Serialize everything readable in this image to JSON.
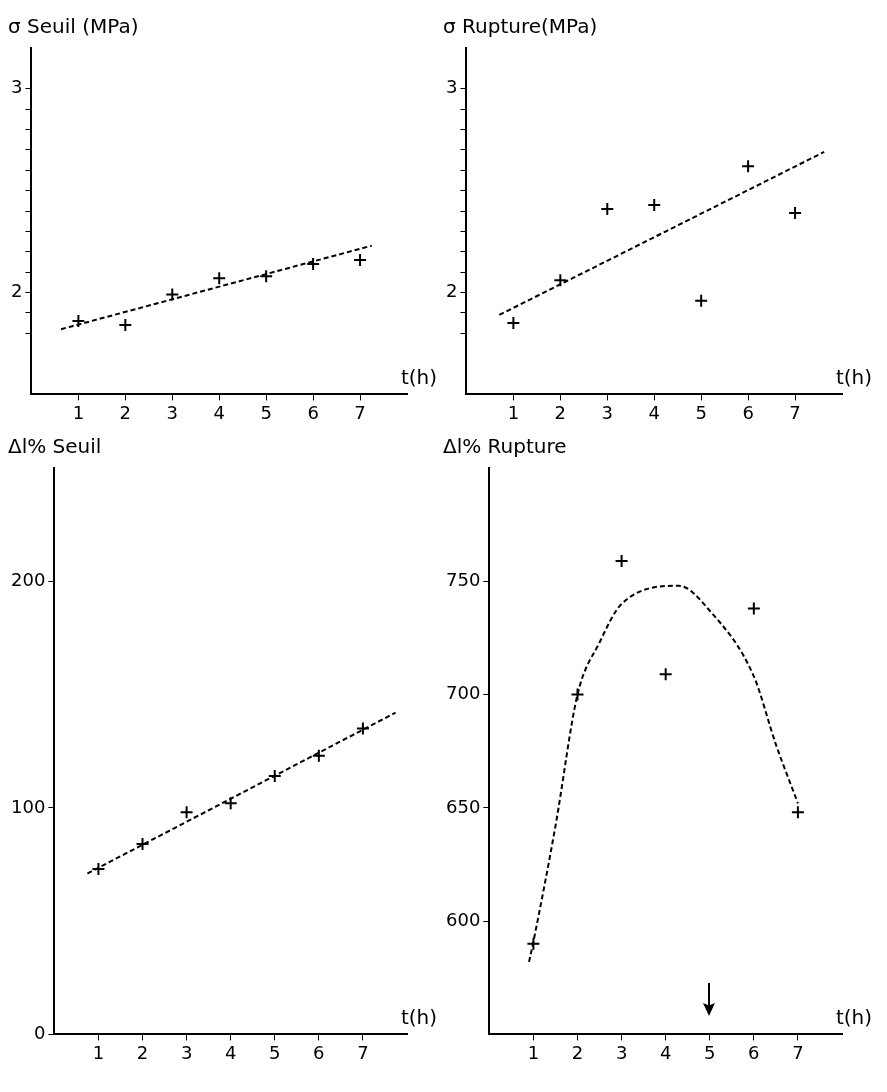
{
  "chart_data": [
    {
      "type": "scatter",
      "title": "σ Seuil (MPa)",
      "xlabel": "t(h)",
      "xlim": [
        0,
        8
      ],
      "xticks": [
        1,
        2,
        3,
        4,
        5,
        6,
        7
      ],
      "ylim": [
        1.5,
        3.2
      ],
      "yticks": [
        {
          "value": 1.8,
          "label": null
        },
        {
          "value": 1.9,
          "label": null
        },
        2,
        {
          "value": 2.1,
          "label": null
        },
        {
          "value": 2.2,
          "label": null
        },
        {
          "value": 2.3,
          "label": null
        },
        {
          "value": 2.4,
          "label": null
        },
        {
          "value": 2.5,
          "label": null
        },
        {
          "value": 2.6,
          "label": null
        },
        {
          "value": 2.7,
          "label": null
        },
        {
          "value": 2.8,
          "label": null
        },
        {
          "value": 2.9,
          "label": null
        },
        3
      ],
      "series": [
        {
          "type": "scatter",
          "color": "#000000",
          "marker": "cross",
          "x": [
            1,
            2,
            3,
            4,
            5,
            6,
            7
          ],
          "values": [
            1.86,
            1.84,
            1.99,
            2.07,
            2.08,
            2.14,
            2.16
          ]
        },
        {
          "type": "line",
          "color": "#000000",
          "marker": "none",
          "line_style": "dashed",
          "x": [
            0.63,
            7.25
          ],
          "values": [
            1.82,
            2.23
          ]
        }
      ]
    },
    {
      "type": "scatter",
      "title": "σ Rupture(MPa)",
      "xlabel": "t(h)",
      "xlim": [
        0,
        8
      ],
      "xticks": [
        1,
        2,
        3,
        4,
        5,
        6,
        7
      ],
      "ylim": [
        1.5,
        3.2
      ],
      "yticks": [
        {
          "value": 1.8,
          "label": null
        },
        {
          "value": 1.9,
          "label": null
        },
        2,
        {
          "value": 2.1,
          "label": null
        },
        {
          "value": 2.2,
          "label": null
        },
        {
          "value": 2.3,
          "label": null
        },
        {
          "value": 2.4,
          "label": null
        },
        {
          "value": 2.5,
          "label": null
        },
        {
          "value": 2.6,
          "label": null
        },
        {
          "value": 2.7,
          "label": null
        },
        {
          "value": 2.8,
          "label": null
        },
        {
          "value": 2.9,
          "label": null
        },
        3
      ],
      "series": [
        {
          "type": "scatter",
          "color": "#000000",
          "marker": "cross",
          "x": [
            1,
            2,
            3,
            4,
            5,
            6,
            7
          ],
          "values": [
            1.85,
            2.06,
            2.41,
            2.43,
            1.96,
            2.62,
            2.39
          ]
        },
        {
          "type": "line",
          "color": "#000000",
          "marker": "none",
          "line_style": "dashed",
          "x": [
            0.7,
            7.62
          ],
          "values": [
            1.89,
            2.69
          ]
        }
      ]
    },
    {
      "type": "scatter",
      "title": "Δl% Seuil",
      "xlabel": "t(h)",
      "xlim": [
        0,
        8
      ],
      "xticks": [
        1,
        2,
        3,
        4,
        5,
        6,
        7
      ],
      "ylim": [
        0,
        250
      ],
      "yticks": [
        0,
        100,
        200
      ],
      "series": [
        {
          "type": "scatter",
          "color": "#000000",
          "marker": "cross",
          "x": [
            1,
            2,
            3,
            4,
            5,
            6,
            7
          ],
          "values": [
            73,
            84,
            98,
            102,
            114,
            123,
            135
          ]
        },
        {
          "type": "line",
          "color": "#000000",
          "marker": "none",
          "line_style": "dashed",
          "x": [
            0.75,
            7.74
          ],
          "values": [
            71,
            142
          ]
        }
      ]
    },
    {
      "type": "scatter",
      "title": "Δl% Rupture",
      "xlabel": "t(h)",
      "xlim": [
        0,
        8
      ],
      "xticks": [
        1,
        2,
        3,
        4,
        5,
        6,
        7
      ],
      "ylim": [
        550,
        800
      ],
      "yticks": [
        600,
        650,
        700,
        750
      ],
      "series": [
        {
          "type": "scatter",
          "color": "#000000",
          "marker": "cross",
          "x": [
            1,
            2,
            3,
            4,
            6,
            7
          ],
          "values": [
            590,
            700,
            759,
            709,
            738,
            648
          ]
        },
        {
          "type": "line",
          "color": "#000000",
          "marker": "none",
          "line_style": "dashed",
          "x": [
            0.9,
            1,
            1.5,
            2,
            2.5,
            3,
            4.3,
            5,
            6,
            6.5,
            7
          ],
          "values": [
            582,
            591,
            642,
            700,
            723,
            740,
            748,
            737,
            708,
            678,
            652
          ]
        }
      ]
    }
  ]
}
